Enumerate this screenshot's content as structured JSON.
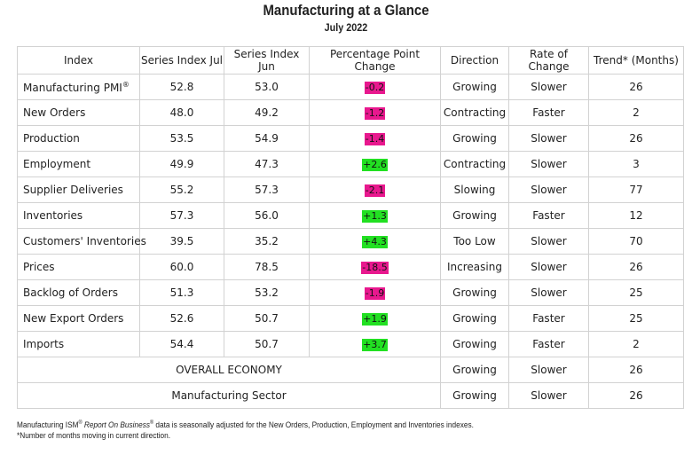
{
  "title": "Manufacturing at a Glance",
  "subtitle": "July 2022",
  "columns": [
    "Index",
    "Series Index Jul",
    "Series Index Jun",
    "Percentage Point Change",
    "Direction",
    "Rate of Change",
    "Trend* (Months)"
  ],
  "rows": [
    {
      "index": "Manufacturing PMI",
      "sup": "®",
      "jul": "52.8",
      "jun": "53.0",
      "change": "-0.2",
      "direction": "Growing",
      "rate": "Slower",
      "trend": "26"
    },
    {
      "index": "New Orders",
      "jul": "48.0",
      "jun": "49.2",
      "change": "-1.2",
      "direction": "Contracting",
      "rate": "Faster",
      "trend": "2"
    },
    {
      "index": "Production",
      "jul": "53.5",
      "jun": "54.9",
      "change": "-1.4",
      "direction": "Growing",
      "rate": "Slower",
      "trend": "26"
    },
    {
      "index": "Employment",
      "jul": "49.9",
      "jun": "47.3",
      "change": "+2.6",
      "direction": "Contracting",
      "rate": "Slower",
      "trend": "3"
    },
    {
      "index": "Supplier Deliveries",
      "jul": "55.2",
      "jun": "57.3",
      "change": "-2.1",
      "direction": "Slowing",
      "rate": "Slower",
      "trend": "77"
    },
    {
      "index": "Inventories",
      "jul": "57.3",
      "jun": "56.0",
      "change": "+1.3",
      "direction": "Growing",
      "rate": "Faster",
      "trend": "12"
    },
    {
      "index": "Customers' Inventories",
      "jul": "39.5",
      "jun": "35.2",
      "change": "+4.3",
      "direction": "Too Low",
      "rate": "Slower",
      "trend": "70"
    },
    {
      "index": "Prices",
      "jul": "60.0",
      "jun": "78.5",
      "change": "-18.5",
      "direction": "Increasing",
      "rate": "Slower",
      "trend": "26"
    },
    {
      "index": "Backlog of Orders",
      "jul": "51.3",
      "jun": "53.2",
      "change": "-1.9",
      "direction": "Growing",
      "rate": "Slower",
      "trend": "25"
    },
    {
      "index": "New Export Orders",
      "jul": "52.6",
      "jun": "50.7",
      "change": "+1.9",
      "direction": "Growing",
      "rate": "Faster",
      "trend": "25"
    },
    {
      "index": "Imports",
      "jul": "54.4",
      "jun": "50.7",
      "change": "+3.7",
      "direction": "Growing",
      "rate": "Faster",
      "trend": "2"
    }
  ],
  "summary_rows": [
    {
      "label": "OVERALL ECONOMY",
      "direction": "Growing",
      "rate": "Slower",
      "trend": "26"
    },
    {
      "label": "Manufacturing Sector",
      "direction": "Growing",
      "rate": "Slower",
      "trend": "26"
    }
  ],
  "footnote1": {
    "pre": "Manufacturing ISM",
    "sup1": "®",
    "italic": "Report On Business",
    "sup2": "®",
    "post": " data is seasonally adjusted for the New Orders, Production, Employment and Inventories indexes."
  },
  "footnote2": "*Number of months moving in current direction.",
  "colors": {
    "negative_change": "#e8188e",
    "positive_change": "#22e022",
    "border": "#d2d2d2"
  }
}
